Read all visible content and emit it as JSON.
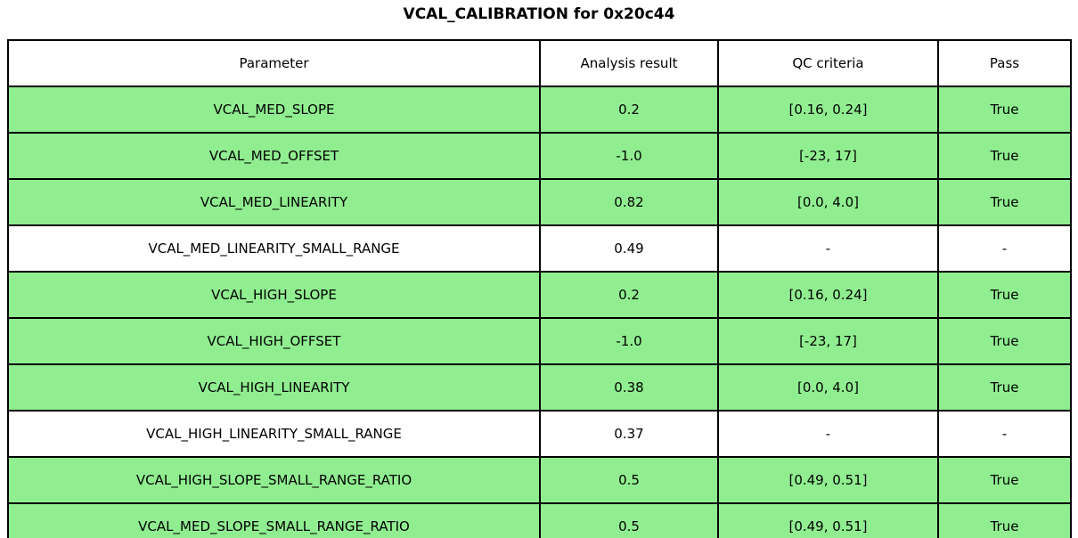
{
  "title": "VCAL_CALIBRATION for 0x20c44",
  "colors": {
    "pass_row_bg": "#90EE90",
    "neutral_row_bg": "#FFFFFF",
    "border": "#000000",
    "text": "#000000"
  },
  "table": {
    "headers": [
      "Parameter",
      "Analysis result",
      "QC criteria",
      "Pass"
    ],
    "rows": [
      {
        "parameter": "VCAL_MED_SLOPE",
        "result": "0.2",
        "qc": "[0.16, 0.24]",
        "pass": "True",
        "highlighted": true
      },
      {
        "parameter": "VCAL_MED_OFFSET",
        "result": "-1.0",
        "qc": "[-23, 17]",
        "pass": "True",
        "highlighted": true
      },
      {
        "parameter": "VCAL_MED_LINEARITY",
        "result": "0.82",
        "qc": "[0.0, 4.0]",
        "pass": "True",
        "highlighted": true
      },
      {
        "parameter": "VCAL_MED_LINEARITY_SMALL_RANGE",
        "result": "0.49",
        "qc": "-",
        "pass": "-",
        "highlighted": false
      },
      {
        "parameter": "VCAL_HIGH_SLOPE",
        "result": "0.2",
        "qc": "[0.16, 0.24]",
        "pass": "True",
        "highlighted": true
      },
      {
        "parameter": "VCAL_HIGH_OFFSET",
        "result": "-1.0",
        "qc": "[-23, 17]",
        "pass": "True",
        "highlighted": true
      },
      {
        "parameter": "VCAL_HIGH_LINEARITY",
        "result": "0.38",
        "qc": "[0.0, 4.0]",
        "pass": "True",
        "highlighted": true
      },
      {
        "parameter": "VCAL_HIGH_LINEARITY_SMALL_RANGE",
        "result": "0.37",
        "qc": "-",
        "pass": "-",
        "highlighted": false
      },
      {
        "parameter": "VCAL_HIGH_SLOPE_SMALL_RANGE_RATIO",
        "result": "0.5",
        "qc": "[0.49, 0.51]",
        "pass": "True",
        "highlighted": true
      },
      {
        "parameter": "VCAL_MED_SLOPE_SMALL_RANGE_RATIO",
        "result": "0.5",
        "qc": "[0.49, 0.51]",
        "pass": "True",
        "highlighted": true
      }
    ]
  },
  "chart_data": {
    "type": "table",
    "title": "VCAL_CALIBRATION for 0x20c44",
    "columns": [
      "Parameter",
      "Analysis result",
      "QC criteria",
      "Pass"
    ],
    "rows": [
      [
        "VCAL_MED_SLOPE",
        "0.2",
        "[0.16, 0.24]",
        "True"
      ],
      [
        "VCAL_MED_OFFSET",
        "-1.0",
        "[-23, 17]",
        "True"
      ],
      [
        "VCAL_MED_LINEARITY",
        "0.82",
        "[0.0, 4.0]",
        "True"
      ],
      [
        "VCAL_MED_LINEARITY_SMALL_RANGE",
        "0.49",
        "-",
        "-"
      ],
      [
        "VCAL_HIGH_SLOPE",
        "0.2",
        "[0.16, 0.24]",
        "True"
      ],
      [
        "VCAL_HIGH_OFFSET",
        "-1.0",
        "[-23, 17]",
        "True"
      ],
      [
        "VCAL_HIGH_LINEARITY",
        "0.38",
        "[0.0, 4.0]",
        "True"
      ],
      [
        "VCAL_HIGH_LINEARITY_SMALL_RANGE",
        "0.37",
        "-",
        "-"
      ],
      [
        "VCAL_HIGH_SLOPE_SMALL_RANGE_RATIO",
        "0.5",
        "[0.49, 0.51]",
        "True"
      ],
      [
        "VCAL_MED_SLOPE_SMALL_RANGE_RATIO",
        "0.5",
        "[0.49, 0.51]",
        "True"
      ]
    ],
    "row_highlight": [
      true,
      true,
      true,
      false,
      true,
      true,
      true,
      false,
      true,
      true
    ],
    "layout": {
      "header_bg": "#FFFFFF",
      "highlight_bg": "#90EE90",
      "grid": true
    }
  }
}
